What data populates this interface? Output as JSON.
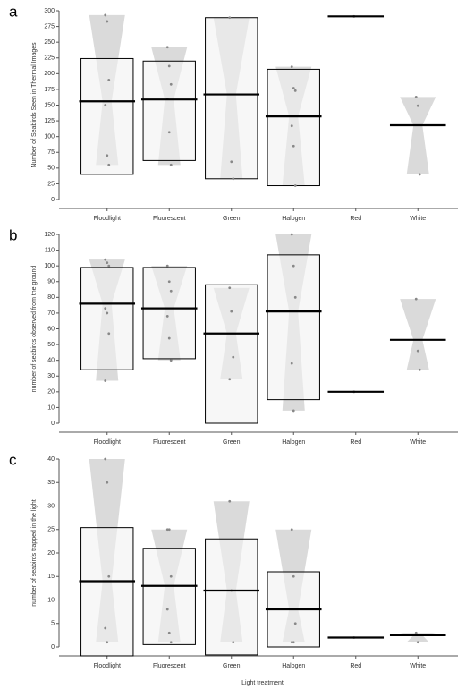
{
  "chart_data": [
    {
      "type": "pirate",
      "panel_label": "a",
      "ylabel": "Number of Seabirds Seen in Thermal Images",
      "categories": [
        "Floodlight",
        "Fluorescent",
        "Green",
        "Halogen",
        "Red",
        "White"
      ],
      "ylim": [
        0,
        300
      ],
      "yticks": [
        0,
        25,
        50,
        75,
        100,
        125,
        150,
        175,
        200,
        225,
        250,
        275,
        300
      ],
      "means": [
        156,
        159,
        167,
        132,
        291,
        118
      ],
      "box_upper": [
        224,
        220,
        289,
        207,
        null,
        null
      ],
      "box_lower": [
        40,
        62,
        33,
        22,
        null,
        null
      ],
      "points": [
        [
          293,
          283,
          190,
          150,
          70,
          55
        ],
        [
          242,
          212,
          183,
          160,
          107,
          55
        ],
        [
          289,
          60,
          33
        ],
        [
          211,
          177,
          173,
          117,
          85,
          22
        ],
        [
          291
        ],
        [
          163,
          149,
          40
        ]
      ],
      "violin_color": "#d6d6d6",
      "box_color": "#f2f2f2",
      "mean_color": "#000000",
      "point_color": "#888888"
    },
    {
      "type": "pirate",
      "panel_label": "b",
      "ylabel": "number of seabircs observed from the ground",
      "categories": [
        "Floodlight",
        "Fluorescent",
        "Green",
        "Halogen",
        "Red",
        "White"
      ],
      "ylim": [
        0,
        120
      ],
      "yticks": [
        0,
        10,
        20,
        30,
        40,
        50,
        60,
        70,
        80,
        90,
        100,
        110,
        120
      ],
      "means": [
        76,
        73,
        57,
        71,
        20,
        53
      ],
      "box_upper": [
        99,
        99,
        88,
        107,
        null,
        null
      ],
      "box_lower": [
        34,
        41,
        0,
        15,
        null,
        null
      ],
      "points": [
        [
          104,
          102,
          100,
          73,
          70,
          57,
          27
        ],
        [
          100,
          90,
          84,
          68,
          54,
          40
        ],
        [
          86,
          71,
          42,
          28
        ],
        [
          120,
          100,
          80,
          38,
          8
        ],
        [
          20
        ],
        [
          79,
          46,
          34
        ]
      ],
      "violin_color": "#d6d6d6",
      "box_color": "#f2f2f2",
      "mean_color": "#000000",
      "point_color": "#888888"
    },
    {
      "type": "pirate",
      "panel_label": "c",
      "ylabel": "number of seabirds trapped in the light",
      "xlabel": "Light treatment",
      "categories": [
        "Floodlight",
        "Fluorescent",
        "Green",
        "Halogen",
        "Red",
        "White"
      ],
      "ylim": [
        0,
        40
      ],
      "yticks": [
        0,
        5,
        10,
        15,
        20,
        25,
        30,
        35,
        40
      ],
      "means": [
        14,
        13,
        12,
        8,
        2,
        2.5
      ],
      "box_upper": [
        25.4,
        21,
        23,
        16,
        null,
        null
      ],
      "box_lower": [
        -1.9,
        0.5,
        -1.7,
        0,
        null,
        null
      ],
      "points": [
        [
          40,
          35,
          15,
          4,
          1
        ],
        [
          25,
          25,
          15,
          8,
          3,
          1
        ],
        [
          31,
          12,
          1
        ],
        [
          25,
          15,
          5,
          1,
          1
        ],
        [
          2
        ],
        [
          3,
          1
        ]
      ],
      "violin_color": "#d6d6d6",
      "box_color": "#f2f2f2",
      "mean_color": "#000000",
      "point_color": "#888888"
    }
  ]
}
